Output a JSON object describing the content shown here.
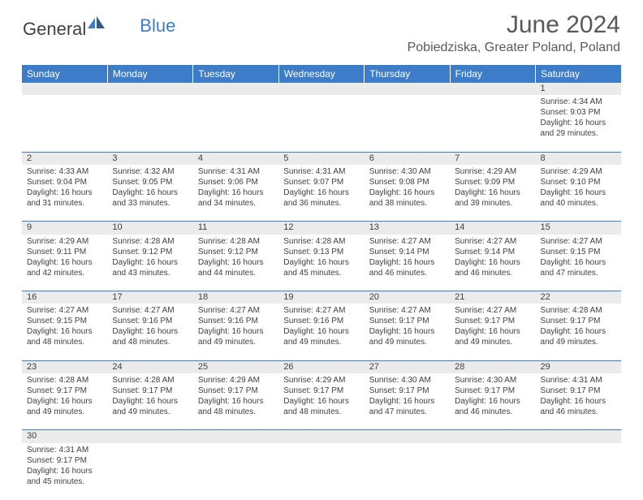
{
  "brand": {
    "word1": "General",
    "word2": "Blue"
  },
  "title": "June 2024",
  "location": "Pobiedziska, Greater Poland, Poland",
  "colors": {
    "header_bg": "#3d7cc9",
    "header_text": "#ffffff",
    "daynum_bg": "#ebebeb",
    "cell_border": "#3d7cc9",
    "body_text": "#404040",
    "title_text": "#595959"
  },
  "weekdays": [
    "Sunday",
    "Monday",
    "Tuesday",
    "Wednesday",
    "Thursday",
    "Friday",
    "Saturday"
  ],
  "weeks": [
    [
      null,
      null,
      null,
      null,
      null,
      null,
      {
        "n": "1",
        "sunrise": "Sunrise: 4:34 AM",
        "sunset": "Sunset: 9:03 PM",
        "d1": "Daylight: 16 hours",
        "d2": "and 29 minutes."
      }
    ],
    [
      {
        "n": "2",
        "sunrise": "Sunrise: 4:33 AM",
        "sunset": "Sunset: 9:04 PM",
        "d1": "Daylight: 16 hours",
        "d2": "and 31 minutes."
      },
      {
        "n": "3",
        "sunrise": "Sunrise: 4:32 AM",
        "sunset": "Sunset: 9:05 PM",
        "d1": "Daylight: 16 hours",
        "d2": "and 33 minutes."
      },
      {
        "n": "4",
        "sunrise": "Sunrise: 4:31 AM",
        "sunset": "Sunset: 9:06 PM",
        "d1": "Daylight: 16 hours",
        "d2": "and 34 minutes."
      },
      {
        "n": "5",
        "sunrise": "Sunrise: 4:31 AM",
        "sunset": "Sunset: 9:07 PM",
        "d1": "Daylight: 16 hours",
        "d2": "and 36 minutes."
      },
      {
        "n": "6",
        "sunrise": "Sunrise: 4:30 AM",
        "sunset": "Sunset: 9:08 PM",
        "d1": "Daylight: 16 hours",
        "d2": "and 38 minutes."
      },
      {
        "n": "7",
        "sunrise": "Sunrise: 4:29 AM",
        "sunset": "Sunset: 9:09 PM",
        "d1": "Daylight: 16 hours",
        "d2": "and 39 minutes."
      },
      {
        "n": "8",
        "sunrise": "Sunrise: 4:29 AM",
        "sunset": "Sunset: 9:10 PM",
        "d1": "Daylight: 16 hours",
        "d2": "and 40 minutes."
      }
    ],
    [
      {
        "n": "9",
        "sunrise": "Sunrise: 4:29 AM",
        "sunset": "Sunset: 9:11 PM",
        "d1": "Daylight: 16 hours",
        "d2": "and 42 minutes."
      },
      {
        "n": "10",
        "sunrise": "Sunrise: 4:28 AM",
        "sunset": "Sunset: 9:12 PM",
        "d1": "Daylight: 16 hours",
        "d2": "and 43 minutes."
      },
      {
        "n": "11",
        "sunrise": "Sunrise: 4:28 AM",
        "sunset": "Sunset: 9:12 PM",
        "d1": "Daylight: 16 hours",
        "d2": "and 44 minutes."
      },
      {
        "n": "12",
        "sunrise": "Sunrise: 4:28 AM",
        "sunset": "Sunset: 9:13 PM",
        "d1": "Daylight: 16 hours",
        "d2": "and 45 minutes."
      },
      {
        "n": "13",
        "sunrise": "Sunrise: 4:27 AM",
        "sunset": "Sunset: 9:14 PM",
        "d1": "Daylight: 16 hours",
        "d2": "and 46 minutes."
      },
      {
        "n": "14",
        "sunrise": "Sunrise: 4:27 AM",
        "sunset": "Sunset: 9:14 PM",
        "d1": "Daylight: 16 hours",
        "d2": "and 46 minutes."
      },
      {
        "n": "15",
        "sunrise": "Sunrise: 4:27 AM",
        "sunset": "Sunset: 9:15 PM",
        "d1": "Daylight: 16 hours",
        "d2": "and 47 minutes."
      }
    ],
    [
      {
        "n": "16",
        "sunrise": "Sunrise: 4:27 AM",
        "sunset": "Sunset: 9:15 PM",
        "d1": "Daylight: 16 hours",
        "d2": "and 48 minutes."
      },
      {
        "n": "17",
        "sunrise": "Sunrise: 4:27 AM",
        "sunset": "Sunset: 9:16 PM",
        "d1": "Daylight: 16 hours",
        "d2": "and 48 minutes."
      },
      {
        "n": "18",
        "sunrise": "Sunrise: 4:27 AM",
        "sunset": "Sunset: 9:16 PM",
        "d1": "Daylight: 16 hours",
        "d2": "and 49 minutes."
      },
      {
        "n": "19",
        "sunrise": "Sunrise: 4:27 AM",
        "sunset": "Sunset: 9:16 PM",
        "d1": "Daylight: 16 hours",
        "d2": "and 49 minutes."
      },
      {
        "n": "20",
        "sunrise": "Sunrise: 4:27 AM",
        "sunset": "Sunset: 9:17 PM",
        "d1": "Daylight: 16 hours",
        "d2": "and 49 minutes."
      },
      {
        "n": "21",
        "sunrise": "Sunrise: 4:27 AM",
        "sunset": "Sunset: 9:17 PM",
        "d1": "Daylight: 16 hours",
        "d2": "and 49 minutes."
      },
      {
        "n": "22",
        "sunrise": "Sunrise: 4:28 AM",
        "sunset": "Sunset: 9:17 PM",
        "d1": "Daylight: 16 hours",
        "d2": "and 49 minutes."
      }
    ],
    [
      {
        "n": "23",
        "sunrise": "Sunrise: 4:28 AM",
        "sunset": "Sunset: 9:17 PM",
        "d1": "Daylight: 16 hours",
        "d2": "and 49 minutes."
      },
      {
        "n": "24",
        "sunrise": "Sunrise: 4:28 AM",
        "sunset": "Sunset: 9:17 PM",
        "d1": "Daylight: 16 hours",
        "d2": "and 49 minutes."
      },
      {
        "n": "25",
        "sunrise": "Sunrise: 4:29 AM",
        "sunset": "Sunset: 9:17 PM",
        "d1": "Daylight: 16 hours",
        "d2": "and 48 minutes."
      },
      {
        "n": "26",
        "sunrise": "Sunrise: 4:29 AM",
        "sunset": "Sunset: 9:17 PM",
        "d1": "Daylight: 16 hours",
        "d2": "and 48 minutes."
      },
      {
        "n": "27",
        "sunrise": "Sunrise: 4:30 AM",
        "sunset": "Sunset: 9:17 PM",
        "d1": "Daylight: 16 hours",
        "d2": "and 47 minutes."
      },
      {
        "n": "28",
        "sunrise": "Sunrise: 4:30 AM",
        "sunset": "Sunset: 9:17 PM",
        "d1": "Daylight: 16 hours",
        "d2": "and 46 minutes."
      },
      {
        "n": "29",
        "sunrise": "Sunrise: 4:31 AM",
        "sunset": "Sunset: 9:17 PM",
        "d1": "Daylight: 16 hours",
        "d2": "and 46 minutes."
      }
    ],
    [
      {
        "n": "30",
        "sunrise": "Sunrise: 4:31 AM",
        "sunset": "Sunset: 9:17 PM",
        "d1": "Daylight: 16 hours",
        "d2": "and 45 minutes."
      },
      null,
      null,
      null,
      null,
      null,
      null
    ]
  ]
}
